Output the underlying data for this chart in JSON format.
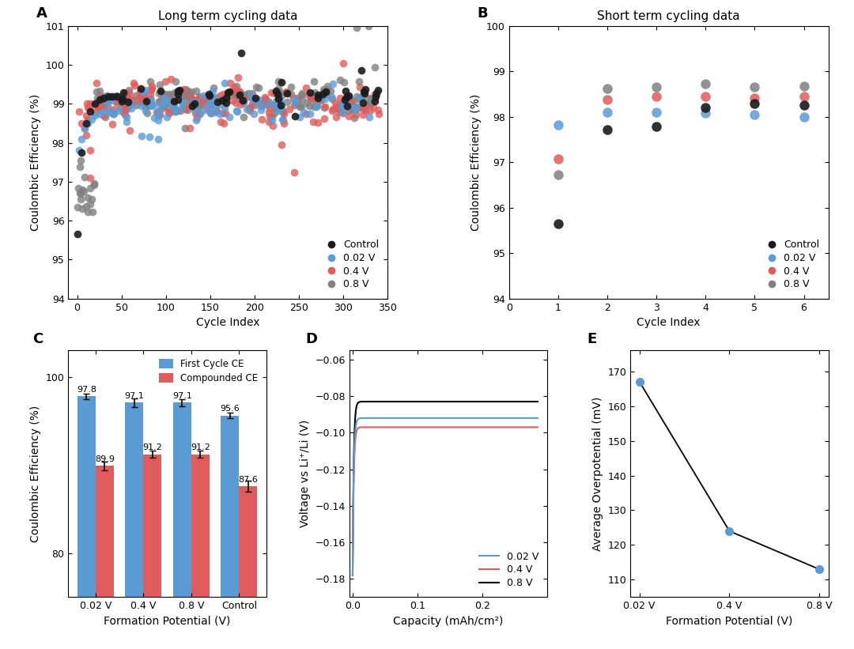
{
  "panel_A_title": "Long term cycling data",
  "panel_B_title": "Short term cycling data",
  "colors": {
    "control": "#1a1a1a",
    "blue": "#5B9BD5",
    "red": "#E05C5C",
    "gray": "#808080"
  },
  "panel_A": {
    "xlim": [
      -10,
      350
    ],
    "ylim": [
      94,
      101
    ],
    "xlabel": "Cycle Index",
    "ylabel": "Coulombic Efficiency (%)",
    "xticks": [
      0,
      50,
      100,
      150,
      200,
      250,
      300,
      350
    ],
    "yticks": [
      94,
      95,
      96,
      97,
      98,
      99,
      100,
      101
    ]
  },
  "panel_B": {
    "xlim": [
      0,
      6.5
    ],
    "ylim": [
      94,
      100
    ],
    "xlabel": "Cycle Index",
    "ylabel": "Coulombic Efficiency (%)",
    "xticks": [
      0,
      1,
      2,
      3,
      4,
      5,
      6
    ],
    "yticks": [
      94,
      95,
      96,
      97,
      98,
      99,
      100
    ]
  },
  "panel_C": {
    "categories": [
      "0.02 V",
      "0.4 V",
      "0.8 V",
      "Control"
    ],
    "first_cycle_ce": [
      97.8,
      97.1,
      97.1,
      95.6
    ],
    "compounded_ce": [
      89.9,
      91.2,
      91.2,
      87.6
    ],
    "first_err": [
      0.3,
      0.5,
      0.4,
      0.3
    ],
    "comp_err": [
      0.5,
      0.4,
      0.4,
      0.6
    ],
    "ylim": [
      75,
      103
    ],
    "yticks": [
      80,
      100
    ],
    "xlabel": "Formation Potential (V)",
    "ylabel": "Coulombic Efficiency (%)"
  },
  "panel_D": {
    "xlabel": "Capacity (mAh/cm²)",
    "ylabel": "Voltage vs Li⁺/Li (V)",
    "xlim": [
      -0.005,
      0.3
    ],
    "ylim": [
      -0.19,
      -0.055
    ],
    "yticks": [
      -0.18,
      -0.16,
      -0.14,
      -0.12,
      -0.1,
      -0.08,
      -0.06
    ],
    "xticks": [
      0.0,
      0.1,
      0.2
    ],
    "blue_start": -0.178,
    "blue_plateau": -0.092,
    "blue_steep": 600,
    "red_start": -0.178,
    "red_plateau": -0.097,
    "red_steep": 600,
    "black_start": -0.178,
    "black_plateau": -0.083,
    "black_steep": 600
  },
  "panel_E": {
    "xlabel": "Formation Potential (V)",
    "ylabel": "Average Overpotential (mV)",
    "xlim_categories": [
      "0.02 V",
      "0.4 V",
      "0.8 V"
    ],
    "values": [
      167,
      124,
      113
    ],
    "ylim": [
      105,
      176
    ],
    "yticks": [
      110,
      120,
      130,
      140,
      150,
      160,
      170
    ]
  }
}
